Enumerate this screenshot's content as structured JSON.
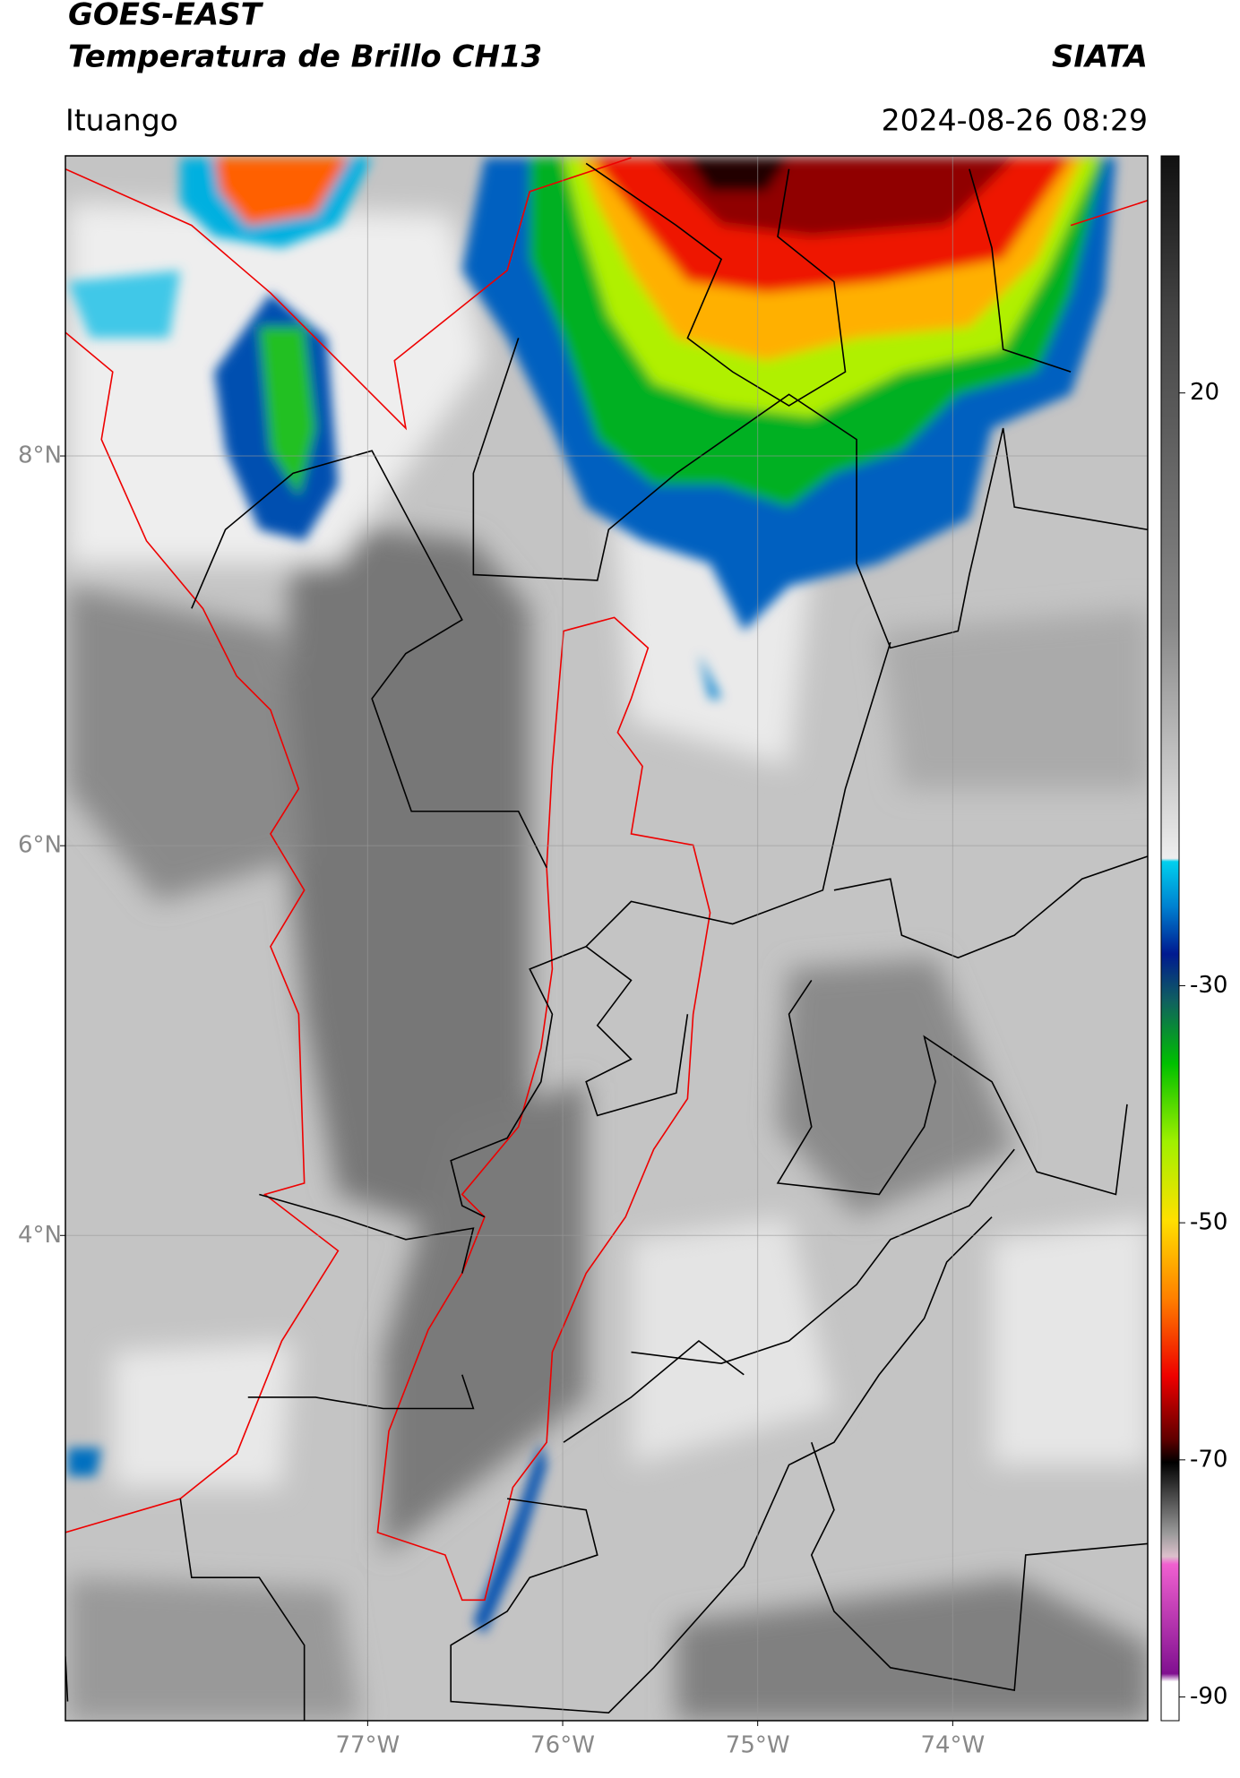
{
  "header": {
    "title_line1": "GOES-EAST",
    "title_line2": "Temperatura de Brillo CH13",
    "source": "SIATA",
    "location": "Ituango",
    "datetime": "2024-08-26 08:29"
  },
  "map": {
    "xlim": [
      -78.55,
      -73.0
    ],
    "ylim": [
      1.51,
      9.54
    ],
    "xticks": [
      {
        "value": -77,
        "label": "77°W"
      },
      {
        "value": -76,
        "label": "76°W"
      },
      {
        "value": -75,
        "label": "75°W"
      },
      {
        "value": -74,
        "label": "74°W"
      }
    ],
    "yticks": [
      {
        "value": 4,
        "label": "4°N"
      },
      {
        "value": 6,
        "label": "6°N"
      },
      {
        "value": 8,
        "label": "8°N"
      }
    ],
    "grid": true
  },
  "colorbar": {
    "lim": [
      -92,
      40
    ],
    "ticks": [
      -90,
      -70,
      -50,
      -30,
      20
    ]
  }
}
